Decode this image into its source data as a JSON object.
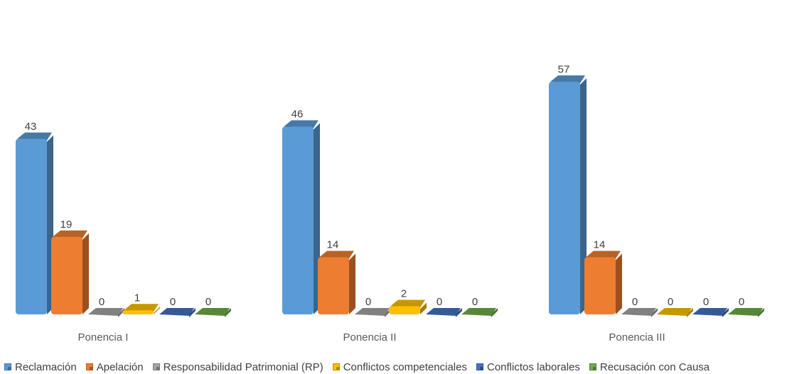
{
  "chart_data": {
    "type": "bar",
    "categories": [
      "Ponencia I",
      "Ponencia II",
      "Ponencia III"
    ],
    "series": [
      {
        "name": "Reclamación",
        "values": [
          43,
          46,
          57
        ],
        "color": "#5b9bd5"
      },
      {
        "name": "Apelación",
        "values": [
          19,
          14,
          14
        ],
        "color": "#ed7d31"
      },
      {
        "name": "Responsabilidad Patrimonial (RP)",
        "values": [
          0,
          0,
          0
        ],
        "color": "#a5a5a5"
      },
      {
        "name": "Conflictos competenciales",
        "values": [
          1,
          2,
          0
        ],
        "color": "#ffc000"
      },
      {
        "name": "Conflictos laborales",
        "values": [
          0,
          0,
          0
        ],
        "color": "#4472c4"
      },
      {
        "name": "Recusación con Causa",
        "values": [
          0,
          0,
          0
        ],
        "color": "#70ad47"
      }
    ],
    "title": "",
    "xlabel": "",
    "ylabel": "",
    "grid": false,
    "legend_position": "bottom",
    "style": "3d-cylinder-bars"
  }
}
